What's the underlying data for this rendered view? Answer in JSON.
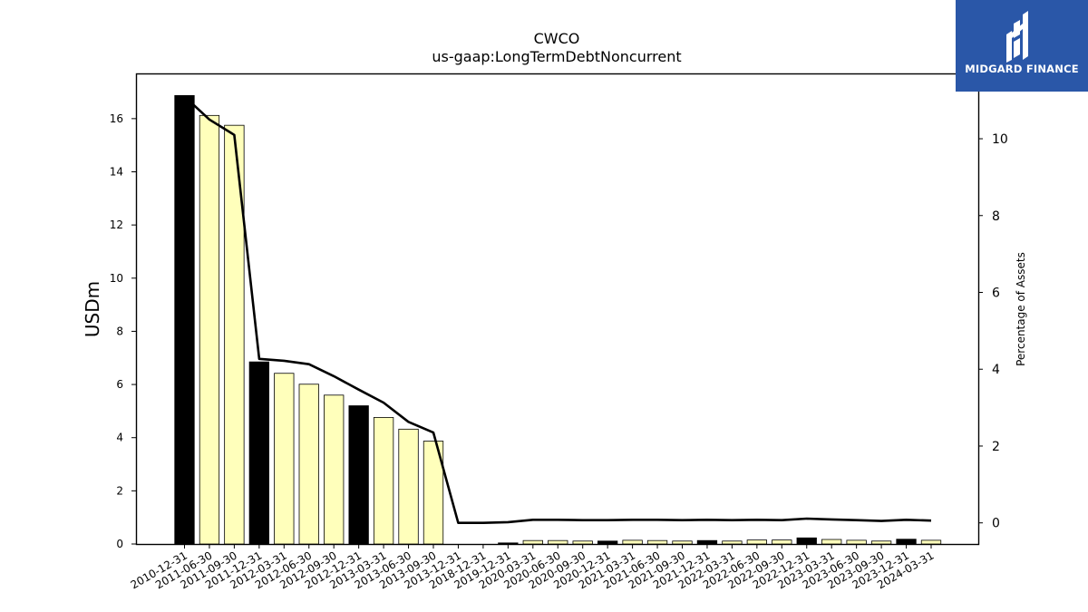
{
  "chart_data": {
    "type": "bar",
    "title": "CWCO",
    "subtitle": "us-gaap:LongTermDebtNoncurrent",
    "ylabel": "USDm",
    "y2label": "Percentage of Assets",
    "ylim": [
      0,
      17.7
    ],
    "y2lim": [
      -0.55,
      11.7
    ],
    "yticks": [
      0,
      2,
      4,
      6,
      8,
      10,
      12,
      14,
      16
    ],
    "y2ticks": [
      0,
      2,
      4,
      6,
      8,
      10
    ],
    "categories": [
      "2010-12-31",
      "2011-06-30",
      "2011-09-30",
      "2011-12-31",
      "2012-03-31",
      "2012-06-30",
      "2012-09-30",
      "2012-12-31",
      "2013-03-31",
      "2013-06-30",
      "2013-09-30",
      "2013-12-31",
      "2018-12-31",
      "2019-12-31",
      "2020-03-31",
      "2020-06-30",
      "2020-09-30",
      "2020-12-31",
      "2021-03-31",
      "2021-06-30",
      "2021-09-30",
      "2021-12-31",
      "2022-03-31",
      "2022-06-30",
      "2022-09-30",
      "2022-12-31",
      "2023-03-31",
      "2023-06-30",
      "2023-09-30",
      "2023-12-31",
      "2024-03-31"
    ],
    "series": [
      {
        "type": "bar",
        "axis": "left",
        "values": [
          16.87,
          16.12,
          15.75,
          6.85,
          6.42,
          6.01,
          5.6,
          5.2,
          4.76,
          4.32,
          3.87,
          0,
          0,
          0.04,
          0.13,
          0.13,
          0.11,
          0.11,
          0.14,
          0.13,
          0.11,
          0.13,
          0.11,
          0.15,
          0.15,
          0.23,
          0.17,
          0.14,
          0.11,
          0.18,
          0.14
        ],
        "highlight": [
          true,
          false,
          false,
          true,
          false,
          false,
          false,
          true,
          false,
          false,
          false,
          true,
          true,
          true,
          false,
          false,
          false,
          true,
          false,
          false,
          false,
          true,
          false,
          false,
          false,
          true,
          false,
          false,
          false,
          true,
          false
        ]
      },
      {
        "type": "line",
        "axis": "right",
        "values": [
          11.1,
          10.5,
          10.1,
          4.27,
          4.22,
          4.13,
          3.82,
          3.47,
          3.13,
          2.63,
          2.35,
          0,
          0,
          0.02,
          0.08,
          0.08,
          0.07,
          0.07,
          0.08,
          0.08,
          0.07,
          0.08,
          0.07,
          0.08,
          0.07,
          0.11,
          0.09,
          0.07,
          0.05,
          0.08,
          0.06
        ]
      }
    ],
    "colors": {
      "highlight_bar": "#000000",
      "bar": "#ffffbb",
      "line": "#000000"
    }
  },
  "brand": {
    "name": "MIDGARD FINANCE",
    "background": "#2a57a8"
  }
}
